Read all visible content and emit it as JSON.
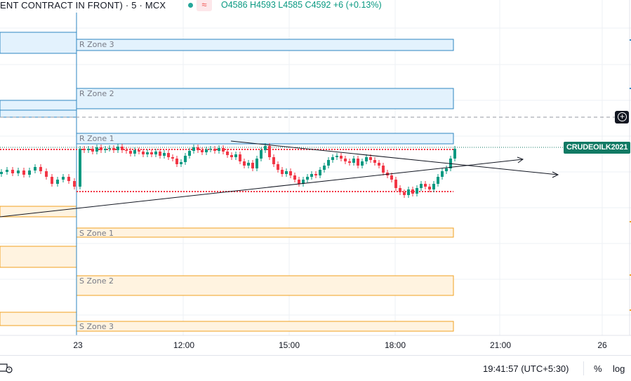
{
  "header": {
    "symbol_text": "ENT CONTRACT IN FRONT) · 5 · MCX",
    "wave_icon": "≈",
    "ohlc_text": "O4586 H4593 L4585 C4592 +6 (+0.13%)"
  },
  "symbol_badge": "CRUDEOILK2021",
  "footer": {
    "clock": "19:41:57 (UTC+5:30)",
    "percent_label": "%",
    "log_label": "log"
  },
  "colors": {
    "up": "#089981",
    "down": "#f23645",
    "resistance_fill": "#e3f2fd",
    "resistance_border": "#2e86c1",
    "support_fill": "#fff3e0",
    "support_border": "#f0a020",
    "level_dots": "#f23645",
    "badge": "#117a64"
  },
  "chart_data": {
    "type": "candlestick",
    "x_ticks": [
      "23",
      "12:00",
      "15:00",
      "18:00",
      "21:00",
      "26"
    ],
    "zones": [
      {
        "label": "R Zone 3",
        "kind": "resistance"
      },
      {
        "label": "R Zone 2",
        "kind": "resistance"
      },
      {
        "label": "R Zone 1",
        "kind": "resistance"
      },
      {
        "label": "S Zone 1",
        "kind": "support"
      },
      {
        "label": "S Zone 2",
        "kind": "support"
      },
      {
        "label": "S Zone 3",
        "kind": "support"
      }
    ],
    "last_close": 4592,
    "ohlc": {
      "open": 4586,
      "high": 4593,
      "low": 4585,
      "close": 4592,
      "change": 6,
      "change_pct": 0.13
    }
  }
}
